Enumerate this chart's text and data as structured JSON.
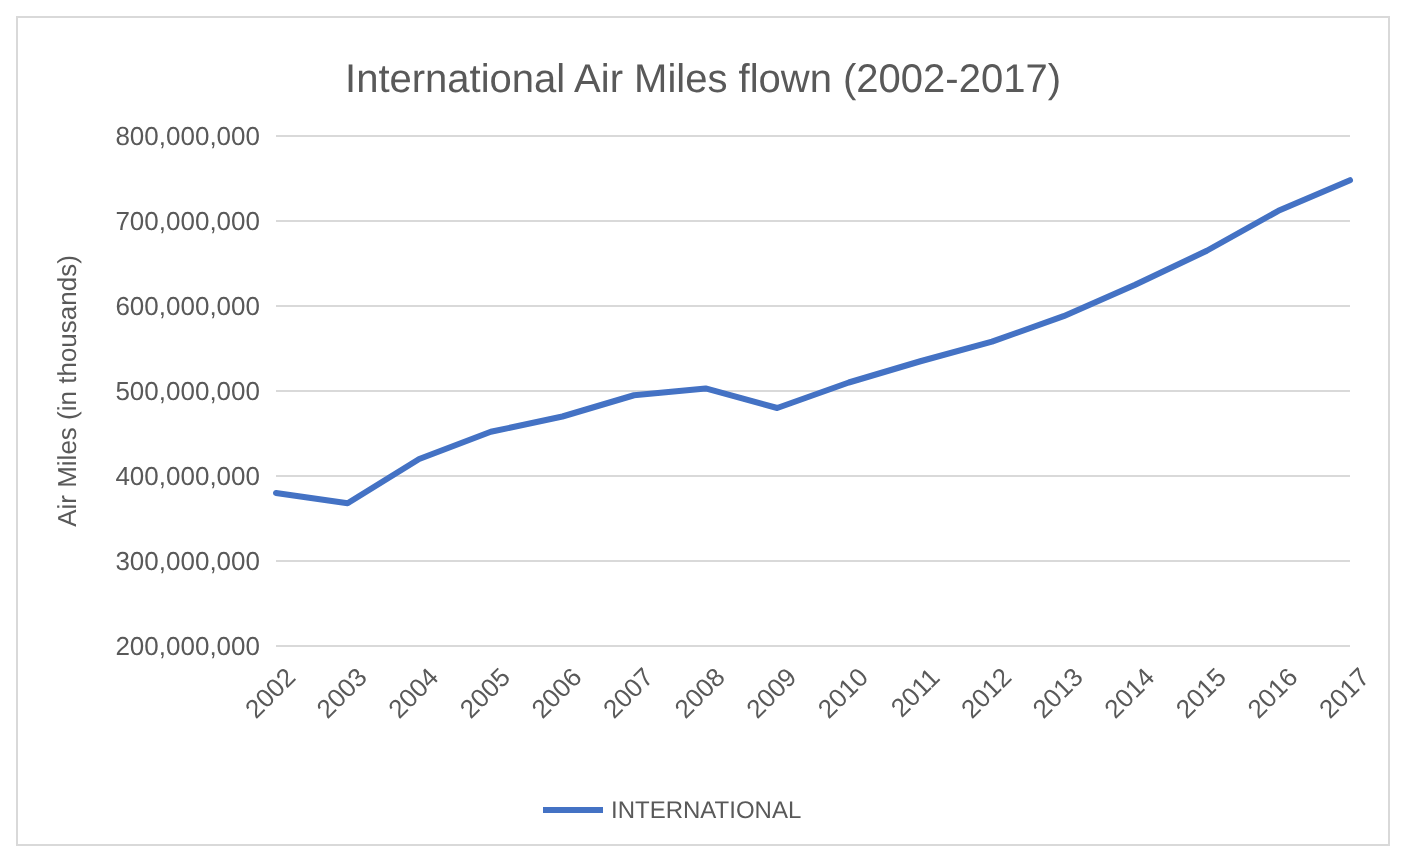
{
  "chart_data": {
    "type": "line",
    "title": "International Air Miles flown (2002-2017)",
    "ylabel": "Air Miles (in thousands)",
    "categories": [
      "2002",
      "2003",
      "2004",
      "2005",
      "2006",
      "2007",
      "2008",
      "2009",
      "2010",
      "2011",
      "2012",
      "2013",
      "2014",
      "2015",
      "2016",
      "2017"
    ],
    "series": [
      {
        "name": "INTERNATIONAL",
        "color": "#4472c4",
        "values": [
          380000000,
          368000000,
          420000000,
          452000000,
          470000000,
          495000000,
          503000000,
          480000000,
          510000000,
          535000000,
          558000000,
          588000000,
          625000000,
          665000000,
          712000000,
          748000000
        ]
      }
    ],
    "ylim": [
      200000000,
      800000000
    ],
    "yticks": [
      {
        "value": 200000000,
        "label": "200,000,000"
      },
      {
        "value": 300000000,
        "label": "300,000,000"
      },
      {
        "value": 400000000,
        "label": "400,000,000"
      },
      {
        "value": 500000000,
        "label": "500,000,000"
      },
      {
        "value": 600000000,
        "label": "600,000,000"
      },
      {
        "value": 700000000,
        "label": "700,000,000"
      },
      {
        "value": 800000000,
        "label": "800,000,000"
      }
    ],
    "grid": "y",
    "legend": "bottom",
    "marker": "none",
    "line_style": "solid"
  }
}
